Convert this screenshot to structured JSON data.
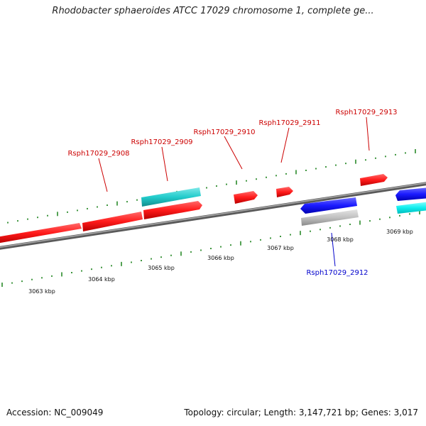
{
  "title": "Rhodobacter sphaeroides ATCC 17029 chromosome 1, complete ge...",
  "footer": {
    "accession": "Accession: NC_009049",
    "info": "Topology: circular; Length: 3,147,721 bp; Genes: 3,017"
  },
  "colors": {
    "forward_gene": "#ff1a1a",
    "reverse_gene": "#1a1aff",
    "rna_gene": "#22cccc",
    "pseudo_gene": "#c0c0c0",
    "genome_line": "#808080",
    "tick": "#2a8a2a",
    "label_forward": "#cc0000",
    "label_reverse": "#0000cc"
  },
  "scale_labels": [
    "3063 kbp",
    "3064 kbp",
    "3065 kbp",
    "3066 kbp",
    "3067 kbp",
    "3068 kbp",
    "3069 kbp"
  ],
  "gene_labels": [
    {
      "text": "Rsph17029_2908",
      "strand": "forward"
    },
    {
      "text": "Rsph17029_2909",
      "strand": "forward"
    },
    {
      "text": "Rsph17029_2910",
      "strand": "forward"
    },
    {
      "text": "Rsph17029_2911",
      "strand": "forward"
    },
    {
      "text": "Rsph17029_2913",
      "strand": "forward"
    },
    {
      "text": "Rsph17029_2912",
      "strand": "reverse"
    }
  ]
}
